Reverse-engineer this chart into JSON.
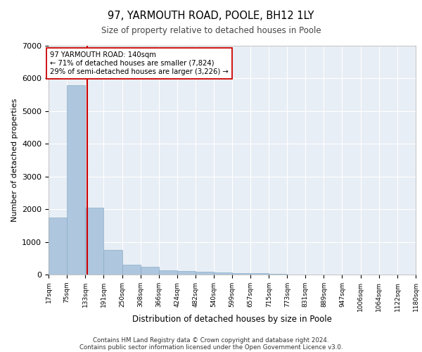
{
  "title1": "97, YARMOUTH ROAD, POOLE, BH12 1LY",
  "title2": "Size of property relative to detached houses in Poole",
  "xlabel": "Distribution of detached houses by size in Poole",
  "ylabel": "Number of detached properties",
  "bin_edges": [
    17,
    75,
    133,
    191,
    250,
    308,
    366,
    424,
    482,
    540,
    599,
    657,
    715,
    773,
    831,
    889,
    947,
    1006,
    1064,
    1122,
    1180
  ],
  "bar_heights": [
    1750,
    5800,
    2050,
    750,
    300,
    240,
    125,
    115,
    90,
    60,
    50,
    40,
    30,
    0,
    0,
    0,
    0,
    0,
    0,
    0
  ],
  "bar_color": "#aec6de",
  "bar_edge_color": "#8aaec8",
  "property_size": 140,
  "property_line_color": "#cc0000",
  "annotation_line1": "97 YARMOUTH ROAD: 140sqm",
  "annotation_line2": "← 71% of detached houses are smaller (7,824)",
  "annotation_line3": "29% of semi-detached houses are larger (3,226) →",
  "annotation_box_color": "#ffffff",
  "annotation_box_edge": "#cc0000",
  "ylim": [
    0,
    7000
  ],
  "yticks": [
    0,
    1000,
    2000,
    3000,
    4000,
    5000,
    6000,
    7000
  ],
  "background_color": "#e8eef5",
  "footer1": "Contains HM Land Registry data © Crown copyright and database right 2024.",
  "footer2": "Contains public sector information licensed under the Open Government Licence v3.0."
}
